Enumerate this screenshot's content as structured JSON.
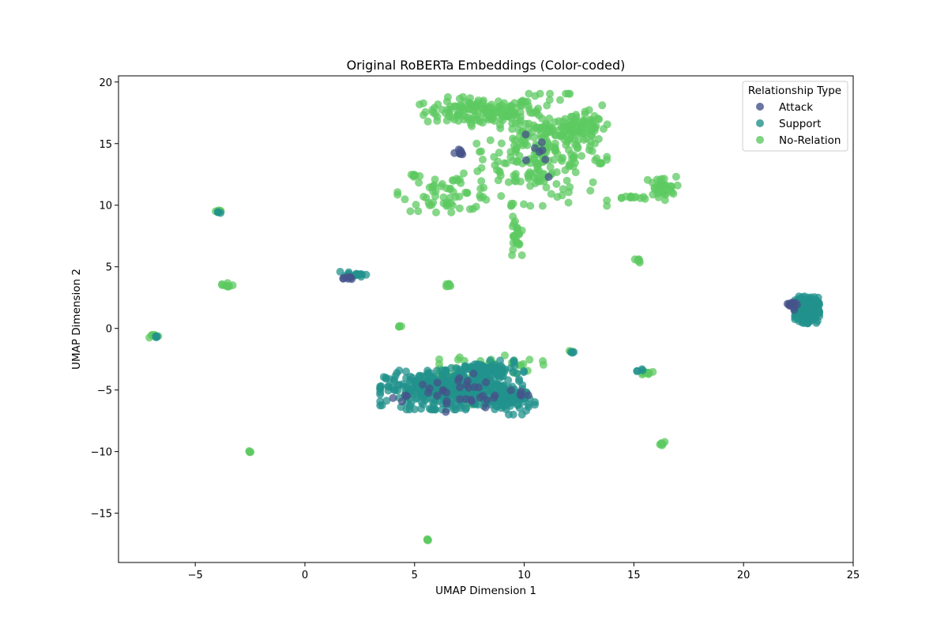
{
  "chart_data": {
    "type": "scatter",
    "title": "Original RoBERTa Embeddings (Color-coded)",
    "xlabel": "UMAP Dimension 1",
    "ylabel": "UMAP Dimension 2",
    "xlim": [
      -8.5,
      25
    ],
    "ylim": [
      -19,
      20.5
    ],
    "xticks": [
      -5,
      0,
      5,
      10,
      15,
      20,
      25
    ],
    "yticks": [
      -15,
      -10,
      -5,
      0,
      5,
      10,
      15,
      20
    ],
    "xtick_labels": [
      "−5",
      "0",
      "5",
      "10",
      "15",
      "20",
      "25"
    ],
    "ytick_labels": [
      "−15",
      "−10",
      "−5",
      "0",
      "5",
      "10",
      "15",
      "20"
    ],
    "grid": false,
    "legend": {
      "title": "Relationship Type",
      "position": "top-right"
    },
    "series": [
      {
        "name": "Attack",
        "color": "#46538a"
      },
      {
        "name": "Support",
        "color": "#21918c"
      },
      {
        "name": "No-Relation",
        "color": "#5ec962"
      }
    ],
    "clusters": [
      {
        "series": "No-Relation",
        "x": 8.0,
        "y": 17.6,
        "sx": 1.4,
        "sy": 0.6,
        "n": 140
      },
      {
        "series": "No-Relation",
        "x": 10.8,
        "y": 14.5,
        "sx": 1.5,
        "sy": 2.3,
        "n": 260
      },
      {
        "series": "No-Relation",
        "x": 12.6,
        "y": 16.2,
        "sx": 0.6,
        "sy": 0.6,
        "n": 70
      },
      {
        "series": "No-Relation",
        "x": 6.6,
        "y": 11.0,
        "sx": 1.2,
        "sy": 0.8,
        "n": 60
      },
      {
        "series": "No-Relation",
        "x": 9.6,
        "y": 7.3,
        "sx": 0.15,
        "sy": 0.9,
        "n": 25
      },
      {
        "series": "No-Relation",
        "x": 16.2,
        "y": 11.4,
        "sx": 0.4,
        "sy": 0.5,
        "n": 35
      },
      {
        "series": "No-Relation",
        "x": 15.0,
        "y": 10.6,
        "sx": 0.3,
        "sy": 0.1,
        "n": 12
      },
      {
        "series": "No-Relation",
        "x": 15.2,
        "y": 5.5,
        "sx": 0.1,
        "sy": 0.1,
        "n": 6
      },
      {
        "series": "No-Relation",
        "x": 13.5,
        "y": 13.4,
        "sx": 0.1,
        "sy": 0.1,
        "n": 4
      },
      {
        "series": "No-Relation",
        "x": 5.0,
        "y": 12.4,
        "sx": 0.15,
        "sy": 0.1,
        "n": 8
      },
      {
        "series": "No-Relation",
        "x": -3.6,
        "y": 3.5,
        "sx": 0.2,
        "sy": 0.15,
        "n": 10
      },
      {
        "series": "No-Relation",
        "x": 6.6,
        "y": 3.5,
        "sx": 0.1,
        "sy": 0.1,
        "n": 8
      },
      {
        "series": "No-Relation",
        "x": 4.3,
        "y": 0.2,
        "sx": 0.05,
        "sy": 0.05,
        "n": 4
      },
      {
        "series": "No-Relation",
        "x": -6.9,
        "y": -0.6,
        "sx": 0.15,
        "sy": 0.1,
        "n": 8
      },
      {
        "series": "No-Relation",
        "x": -2.5,
        "y": -10.0,
        "sx": 0.05,
        "sy": 0.05,
        "n": 4
      },
      {
        "series": "No-Relation",
        "x": 16.3,
        "y": -9.3,
        "sx": 0.1,
        "sy": 0.1,
        "n": 6
      },
      {
        "series": "No-Relation",
        "x": 15.6,
        "y": -3.6,
        "sx": 0.2,
        "sy": 0.1,
        "n": 10
      },
      {
        "series": "No-Relation",
        "x": 5.6,
        "y": -17.2,
        "sx": 0.06,
        "sy": 0.06,
        "n": 4
      },
      {
        "series": "No-Relation",
        "x": -3.9,
        "y": 9.5,
        "sx": 0.1,
        "sy": 0.05,
        "n": 6
      },
      {
        "series": "No-Relation",
        "x": 8.5,
        "y": -3.0,
        "sx": 1.2,
        "sy": 0.5,
        "n": 45
      },
      {
        "series": "No-Relation",
        "x": 6.0,
        "y": -4.8,
        "sx": 1.5,
        "sy": 0.8,
        "n": 40
      },
      {
        "series": "No-Relation",
        "x": 12.1,
        "y": -1.9,
        "sx": 0.05,
        "sy": 0.05,
        "n": 3
      },
      {
        "series": "Support",
        "x": 6.6,
        "y": -5.0,
        "sx": 1.6,
        "sy": 0.8,
        "n": 420
      },
      {
        "series": "Support",
        "x": 9.3,
        "y": -5.8,
        "sx": 0.6,
        "sy": 0.6,
        "n": 80
      },
      {
        "series": "Support",
        "x": 8.2,
        "y": -3.4,
        "sx": 0.9,
        "sy": 0.4,
        "n": 90
      },
      {
        "series": "Support",
        "x": 22.9,
        "y": 1.5,
        "sx": 0.28,
        "sy": 0.55,
        "n": 260
      },
      {
        "series": "Support",
        "x": 2.2,
        "y": 4.4,
        "sx": 0.3,
        "sy": 0.12,
        "n": 15
      },
      {
        "series": "Support",
        "x": 12.2,
        "y": -1.9,
        "sx": 0.05,
        "sy": 0.05,
        "n": 3
      },
      {
        "series": "Support",
        "x": 15.3,
        "y": -3.4,
        "sx": 0.08,
        "sy": 0.05,
        "n": 4
      },
      {
        "series": "Support",
        "x": -6.8,
        "y": -0.7,
        "sx": 0.05,
        "sy": 0.05,
        "n": 3
      },
      {
        "series": "Support",
        "x": -3.9,
        "y": 9.4,
        "sx": 0.05,
        "sy": 0.05,
        "n": 3
      },
      {
        "series": "Attack",
        "x": 7.0,
        "y": -5.2,
        "sx": 1.8,
        "sy": 0.8,
        "n": 40
      },
      {
        "series": "Attack",
        "x": 22.4,
        "y": 1.9,
        "sx": 0.2,
        "sy": 0.2,
        "n": 12
      },
      {
        "series": "Attack",
        "x": 1.9,
        "y": 4.1,
        "sx": 0.2,
        "sy": 0.1,
        "n": 8
      },
      {
        "series": "Attack",
        "x": 7.0,
        "y": 14.3,
        "sx": 0.2,
        "sy": 0.2,
        "n": 8
      },
      {
        "series": "Attack",
        "x": 10.5,
        "y": 14.5,
        "sx": 0.6,
        "sy": 1.3,
        "n": 8
      }
    ]
  }
}
